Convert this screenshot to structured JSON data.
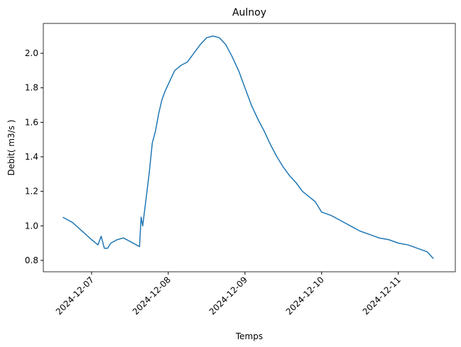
{
  "chart_data": {
    "type": "line",
    "title": "Aulnoy",
    "x_label": "Temps",
    "y_label": "Debit( m3/s )",
    "x": [
      "2024-12-06T15:00",
      "2024-12-06T18:00",
      "2024-12-06T21:00",
      "2024-12-07T00:00",
      "2024-12-07T02:00",
      "2024-12-07T03:00",
      "2024-12-07T04:00",
      "2024-12-07T05:00",
      "2024-12-07T06:00",
      "2024-12-07T08:00",
      "2024-12-07T10:00",
      "2024-12-07T12:00",
      "2024-12-07T14:00",
      "2024-12-07T15:00",
      "2024-12-07T15:30",
      "2024-12-07T16:00",
      "2024-12-07T17:00",
      "2024-12-07T18:00",
      "2024-12-07T19:00",
      "2024-12-07T20:00",
      "2024-12-07T21:00",
      "2024-12-07T22:00",
      "2024-12-07T23:00",
      "2024-12-08T00:00",
      "2024-12-08T02:00",
      "2024-12-08T04:00",
      "2024-12-08T06:00",
      "2024-12-08T08:00",
      "2024-12-08T10:00",
      "2024-12-08T12:00",
      "2024-12-08T14:00",
      "2024-12-08T16:00",
      "2024-12-08T18:00",
      "2024-12-08T20:00",
      "2024-12-08T22:00",
      "2024-12-09T00:00",
      "2024-12-09T02:00",
      "2024-12-09T04:00",
      "2024-12-09T06:00",
      "2024-12-09T08:00",
      "2024-12-09T10:00",
      "2024-12-09T12:00",
      "2024-12-09T14:00",
      "2024-12-09T16:00",
      "2024-12-09T18:00",
      "2024-12-09T20:00",
      "2024-12-09T22:00",
      "2024-12-10T00:00",
      "2024-12-10T03:00",
      "2024-12-10T06:00",
      "2024-12-10T09:00",
      "2024-12-10T12:00",
      "2024-12-10T15:00",
      "2024-12-10T18:00",
      "2024-12-10T21:00",
      "2024-12-11T00:00",
      "2024-12-11T03:00",
      "2024-12-11T06:00",
      "2024-12-11T09:00",
      "2024-12-11T11:00"
    ],
    "series": [
      {
        "name": "Debit",
        "color": "#1f77b4",
        "values": [
          1.05,
          1.02,
          0.97,
          0.92,
          0.89,
          0.94,
          0.87,
          0.87,
          0.9,
          0.92,
          0.93,
          0.91,
          0.89,
          0.88,
          1.05,
          1.0,
          1.15,
          1.3,
          1.48,
          1.55,
          1.65,
          1.73,
          1.78,
          1.82,
          1.9,
          1.93,
          1.95,
          2.0,
          2.05,
          2.09,
          2.1,
          2.09,
          2.05,
          1.98,
          1.9,
          1.8,
          1.7,
          1.62,
          1.55,
          1.47,
          1.4,
          1.34,
          1.29,
          1.25,
          1.2,
          1.17,
          1.14,
          1.08,
          1.06,
          1.03,
          1.0,
          0.97,
          0.95,
          0.93,
          0.92,
          0.9,
          0.89,
          0.87,
          0.85,
          0.81
        ]
      }
    ],
    "xlim": [
      "2024-12-06T08:54",
      "2024-12-11T17:50"
    ],
    "xticks": [
      "2024-12-07",
      "2024-12-08",
      "2024-12-09",
      "2024-12-10",
      "2024-12-11"
    ],
    "ylim": [
      0.734,
      2.173
    ],
    "yticks": [
      {
        "value": 0.8,
        "label": "0.8"
      },
      {
        "value": 1.0,
        "label": "1.0"
      },
      {
        "value": 1.2,
        "label": "1.2"
      },
      {
        "value": 1.4,
        "label": "1.4"
      },
      {
        "value": 1.6,
        "label": "1.6"
      },
      {
        "value": 1.8,
        "label": "1.8"
      },
      {
        "value": 2.0,
        "label": "2.0"
      }
    ]
  }
}
